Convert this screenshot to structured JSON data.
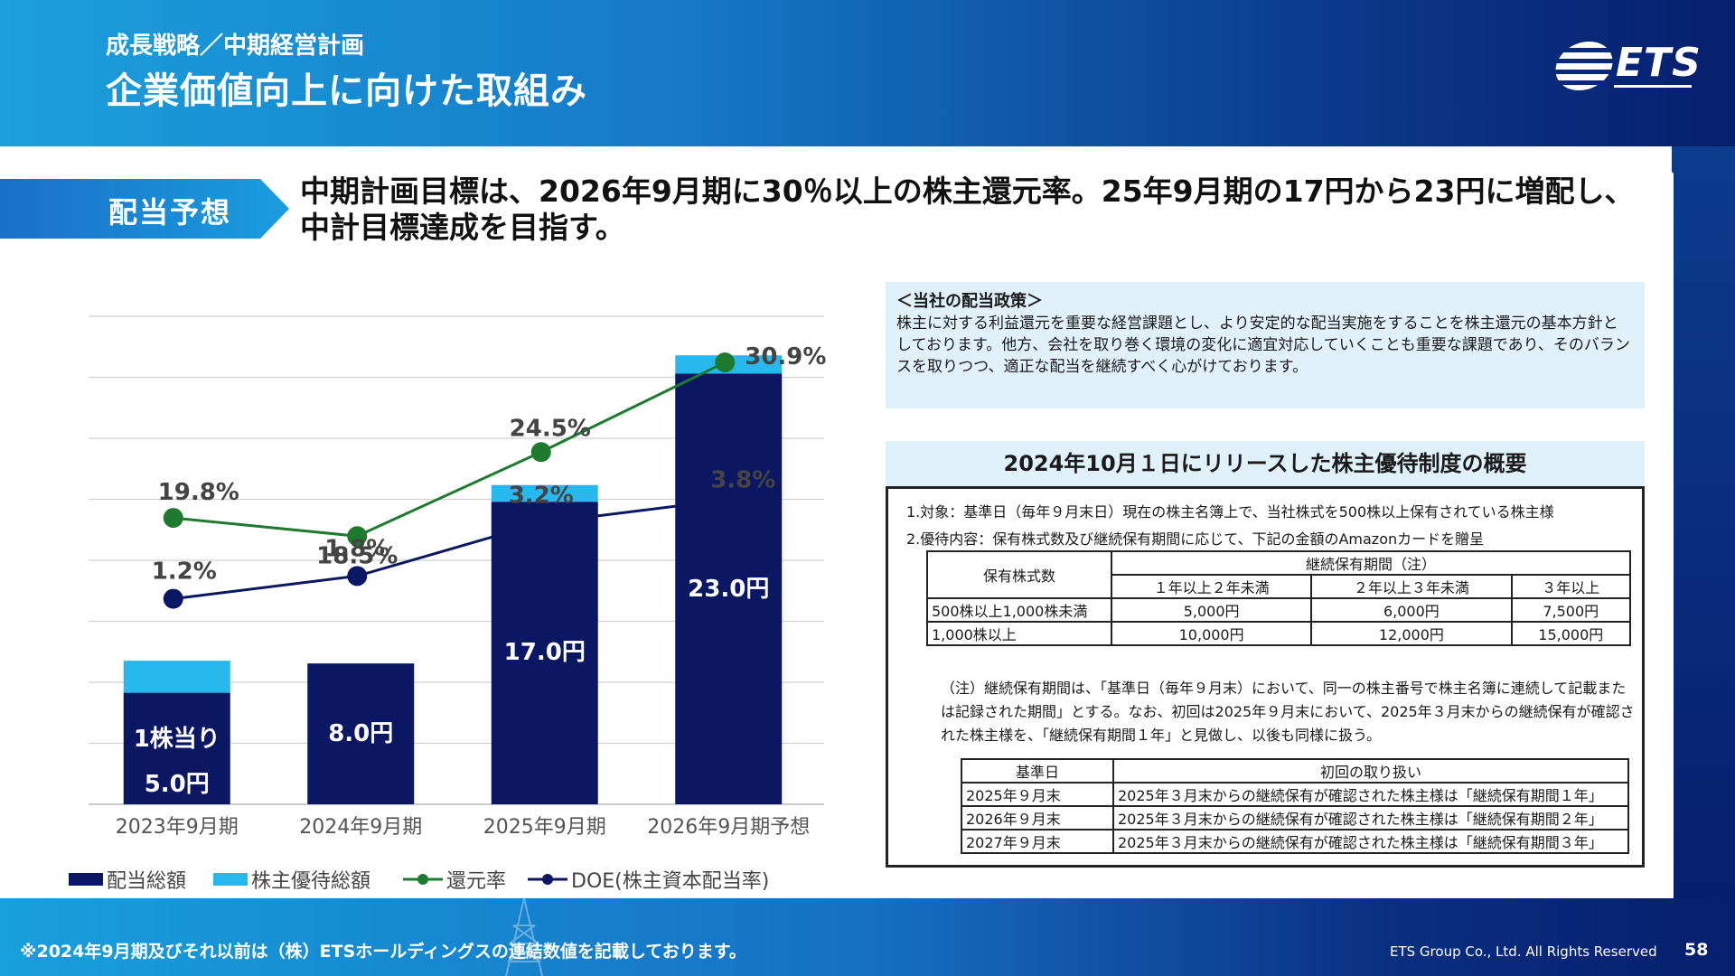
{
  "header": {
    "subtitle": "成長戦略／中期経営計画",
    "title": "企業価値向上に向けた取組み",
    "logo_text": "ETS"
  },
  "section": {
    "tag": "配当予想",
    "headline": "中期計画目標は、2026年9月期に30％以上の株主還元率。25年9月期の17円から23円に増配し、中計目標達成を目指す。"
  },
  "chart_data": {
    "type": "bar",
    "categories": [
      "2023年9月期",
      "2024年9月期",
      "2025年9月期",
      "2026年9月期予想"
    ],
    "series": [
      {
        "name": "配当総額",
        "type": "bar",
        "color": "#0b1763",
        "values": [
          80,
          101,
          217,
          309
        ]
      },
      {
        "name": "株主優待総額",
        "type": "bar",
        "color": "#29b8ee",
        "values": [
          23,
          0,
          12,
          13
        ]
      },
      {
        "name": "還元率",
        "type": "line",
        "color": "#1e7a2e",
        "values": [
          19.8,
          18.5,
          24.5,
          30.9
        ],
        "labels": [
          "19.8%",
          "18.5%",
          "24.5%",
          "30.9%"
        ]
      },
      {
        "name": "DOE(株主資本配当率)",
        "type": "line",
        "color": "#0b1763",
        "values": [
          1.2,
          1.8,
          3.2,
          3.8
        ],
        "labels": [
          "1.2%",
          "1.8%",
          "3.2%",
          "3.8%"
        ]
      }
    ],
    "bar_labels": [
      [
        "1株当り",
        "5.0円"
      ],
      [
        "8.0円"
      ],
      [
        "17.0円"
      ],
      [
        "23.0円"
      ]
    ],
    "grid": true,
    "legend_position": "bottom"
  },
  "policy": {
    "heading": "＜当社の配当政策＞",
    "body": "株主に対する利益還元を重要な経営課題とし、より安定的な配当実施をすることを株主還元の基本方針としております。他方、会社を取り巻く環境の変化に適宜対応していくことも重要な課題であり、そのバランスを取りつつ、適正な配当を継続すべく心がけております。"
  },
  "benefit": {
    "title": "2024年10月１日にリリースした株主優待制度の概要",
    "line1": "1.対象：基準日（毎年９月末日）現在の株主名簿上で、当社株式を500株以上保有されている株主様",
    "line2": "2.優待内容：保有株式数及び継続保有期間に応じて、下記の金額のAmazonカードを贈呈",
    "table1": {
      "col_shares": "保有株式数",
      "col_period": "継続保有期間（注）",
      "periods": [
        "１年以上２年未満",
        "２年以上３年未満",
        "３年以上"
      ],
      "rows": [
        {
          "shares": "500株以上1,000株未満",
          "values": [
            "5,000円",
            "6,000円",
            "7,500円"
          ]
        },
        {
          "shares": "1,000株以上",
          "values": [
            "10,000円",
            "12,000円",
            "15,000円"
          ]
        }
      ]
    },
    "note": "（注）継続保有期間は、「基準日（毎年９月末）において、同一の株主番号で株主名簿に連続して記載または記録された期間」とする。なお、初回は2025年９月末において、2025年３月末からの継続保有が確認された株主様を、「継続保有期間１年」と見做し、以後も同様に扱う。",
    "table2": {
      "col_date": "基準日",
      "col_handling": "初回の取り扱い",
      "rows": [
        {
          "date": "2025年９月末",
          "text": "2025年３月末からの継続保有が確認された株主様は「継続保有期間１年」"
        },
        {
          "date": "2026年９月末",
          "text": "2025年３月末からの継続保有が確認された株主様は「継続保有期間２年」"
        },
        {
          "date": "2027年９月末",
          "text": "2025年３月末からの継続保有が確認された株主様は「継続保有期間３年」"
        }
      ]
    }
  },
  "footer": {
    "note": "※2024年9月期及びそれ以前は（株）ETSホールディングスの連結数値を記載しております。",
    "copyright": "ETS Group Co., Ltd. All Rights Reserved",
    "page": "58"
  }
}
